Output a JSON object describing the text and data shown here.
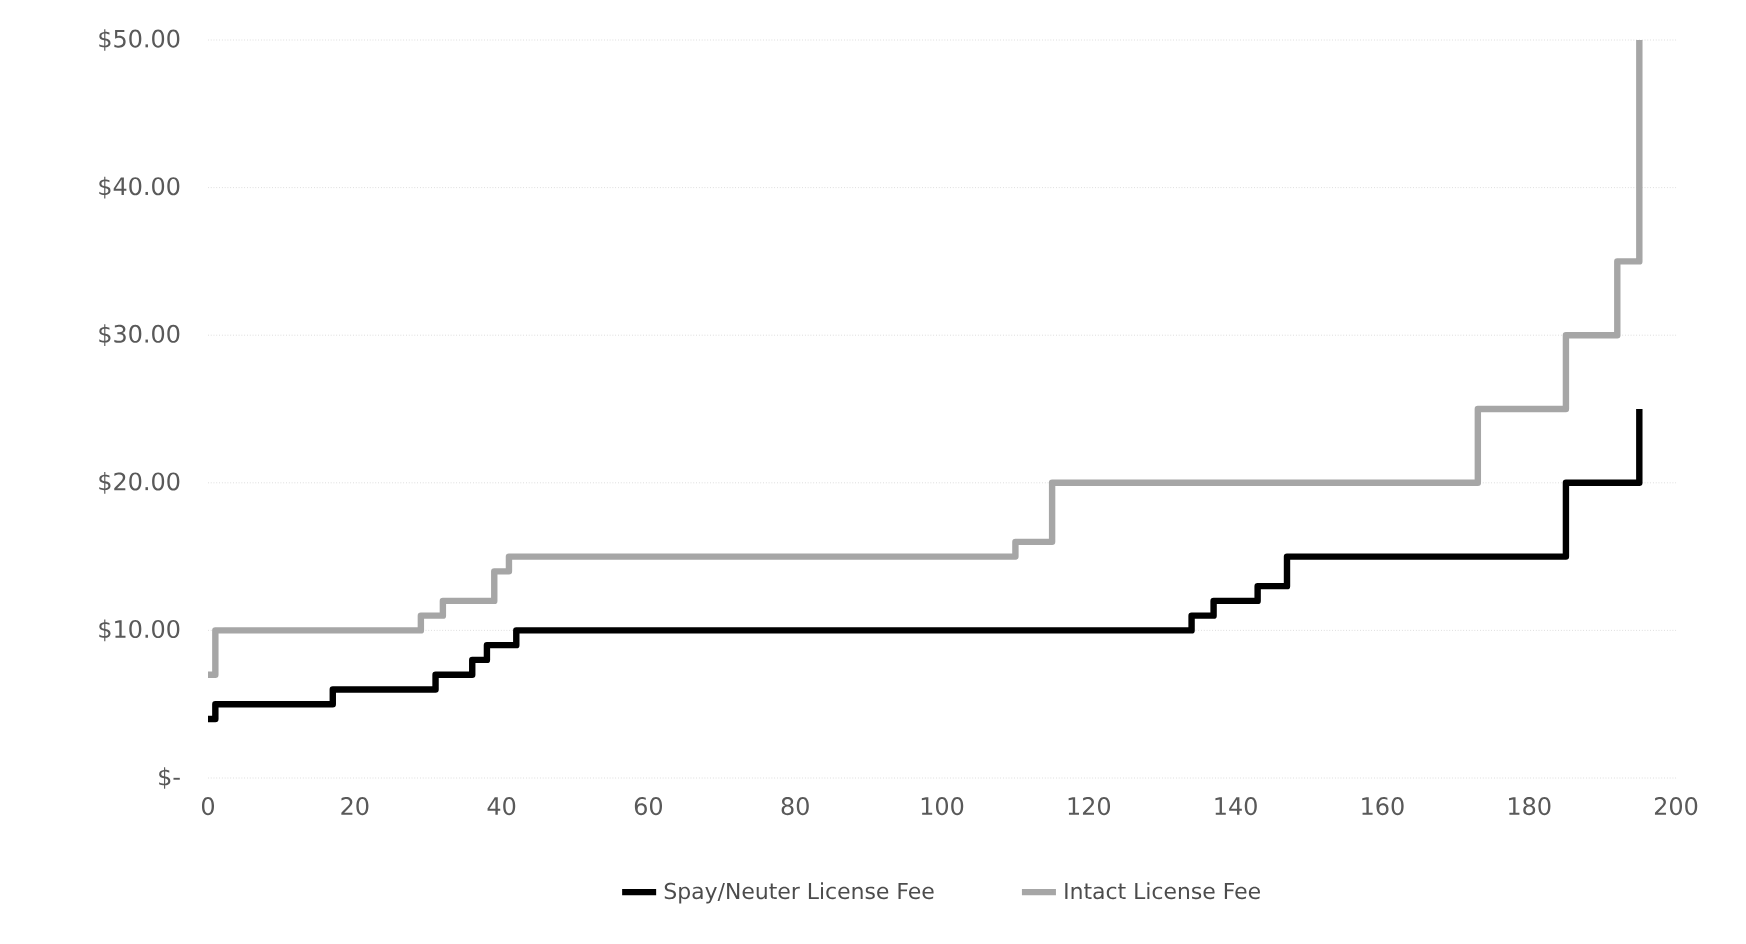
{
  "chart_data": {
    "type": "step",
    "xlim": [
      0,
      200
    ],
    "ylim": [
      0,
      50
    ],
    "xticks": [
      0,
      20,
      40,
      60,
      80,
      100,
      120,
      140,
      160,
      180,
      200
    ],
    "yticks": [
      {
        "value": 0,
        "label": "$-"
      },
      {
        "value": 10,
        "label": "$10.00"
      },
      {
        "value": 20,
        "label": "$20.00"
      },
      {
        "value": 30,
        "label": "$30.00"
      },
      {
        "value": 40,
        "label": "$40.00"
      },
      {
        "value": 50,
        "label": "$50.00"
      }
    ],
    "grid": "y",
    "legend": "bottom",
    "marker": "none",
    "line_style": "solid",
    "series": [
      {
        "name": "Spay/Neuter License Fee",
        "color": "#000000",
        "x": [
          0,
          1,
          17,
          31,
          36,
          38,
          42,
          134,
          137,
          143,
          147,
          185,
          195
        ],
        "values": [
          4,
          5,
          6,
          7,
          8,
          9,
          10,
          11,
          12,
          13,
          15,
          20,
          25
        ]
      },
      {
        "name": "Intact License Fee",
        "color": "#a6a6a6",
        "x": [
          0,
          1,
          29,
          32,
          39,
          41,
          110,
          115,
          173,
          185,
          192,
          195
        ],
        "values": [
          7,
          10,
          11,
          12,
          14,
          15,
          16,
          20,
          25,
          30,
          35,
          50
        ]
      }
    ]
  }
}
